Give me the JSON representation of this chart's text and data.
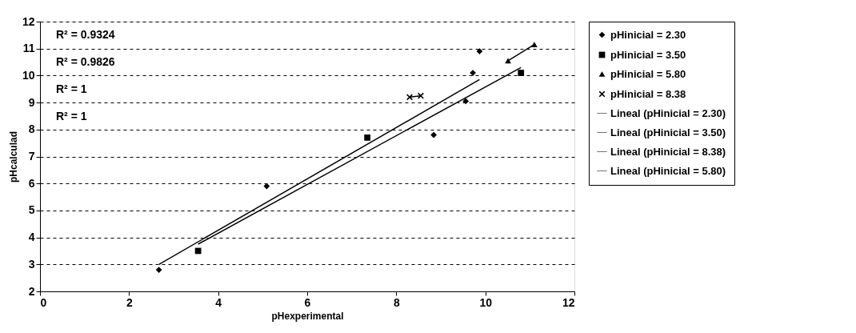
{
  "chart_data": {
    "type": "scatter",
    "xlabel": "pHexperimental",
    "ylabel": "pHcalculad",
    "xlim": [
      0,
      12
    ],
    "xticks": [
      0,
      2,
      4,
      6,
      8,
      10,
      12
    ],
    "ylim": [
      2,
      12
    ],
    "yticks": [
      2,
      3,
      4,
      5,
      6,
      7,
      8,
      9,
      10,
      11,
      12
    ],
    "grid": "y",
    "legend": "right",
    "annotations": [
      "R² = 0.9324",
      "R² = 0.9826",
      "R² = 1",
      "R² = 1"
    ],
    "series": [
      {
        "name": "pHinicial = 2.30",
        "marker": "diamond",
        "color": "#000000",
        "x": [
          2.67,
          5.09,
          8.84,
          9.56,
          9.72,
          9.87
        ],
        "values": [
          2.8,
          5.9,
          7.8,
          9.05,
          10.1,
          10.9
        ]
      },
      {
        "name": "pHinicial = 3.50",
        "marker": "square",
        "color": "#000000",
        "x": [
          3.55,
          7.35,
          10.8
        ],
        "values": [
          3.5,
          7.7,
          10.1
        ]
      },
      {
        "name": "pHinicial = 5.80",
        "marker": "triangle",
        "color": "#000000",
        "x": [
          10.51,
          11.1
        ],
        "values": [
          10.55,
          11.15
        ]
      },
      {
        "name": "pHinicial = 8.38",
        "marker": "cross",
        "color": "#000000",
        "x": [
          8.3,
          8.55
        ],
        "values": [
          9.2,
          9.25
        ]
      },
      {
        "name": "Lineal (pHinicial = 2.30)",
        "type": "line",
        "color": "#000000",
        "x": [
          2.67,
          9.87
        ],
        "values": [
          3.0,
          9.85
        ]
      },
      {
        "name": "Lineal (pHinicial = 3.50)",
        "type": "line",
        "color": "#000000",
        "x": [
          3.55,
          10.8
        ],
        "values": [
          3.75,
          10.3
        ]
      },
      {
        "name": "Lineal (pHinicial = 8.38)",
        "type": "line",
        "color": "#000000",
        "x": [
          8.3,
          8.55
        ],
        "values": [
          9.2,
          9.25
        ]
      },
      {
        "name": "Lineal (pHinicial = 5.80)",
        "type": "line",
        "color": "#000000",
        "x": [
          10.51,
          11.1
        ],
        "values": [
          10.55,
          11.15
        ]
      }
    ]
  }
}
